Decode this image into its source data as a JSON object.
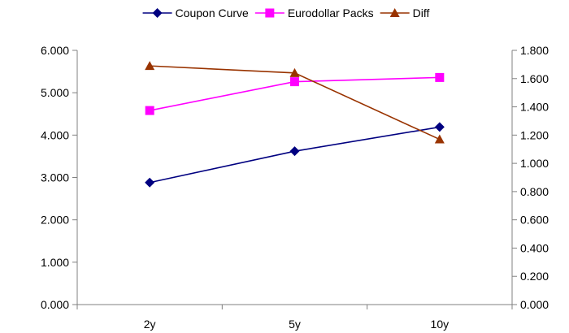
{
  "chart_data": {
    "type": "line",
    "categories": [
      "2y",
      "5y",
      "10y"
    ],
    "series": [
      {
        "name": "Coupon Curve",
        "axis": "left",
        "values": [
          2.88,
          3.62,
          4.19
        ],
        "color": "#000080",
        "marker": "diamond"
      },
      {
        "name": "Eurodollar Packs",
        "axis": "left",
        "values": [
          4.58,
          5.26,
          5.36
        ],
        "color": "#FF00FF",
        "marker": "square"
      },
      {
        "name": "Diff",
        "axis": "right",
        "values": [
          1.69,
          1.64,
          1.17
        ],
        "color": "#993300",
        "marker": "triangle"
      }
    ],
    "y_left": {
      "ylim": [
        0,
        6
      ],
      "ticks": [
        "0.000",
        "1.000",
        "2.000",
        "3.000",
        "4.000",
        "5.000",
        "6.000"
      ]
    },
    "y_right": {
      "ylim": [
        0,
        1.8
      ],
      "ticks": [
        "0.000",
        "0.200",
        "0.400",
        "0.600",
        "0.800",
        "1.000",
        "1.200",
        "1.400",
        "1.600",
        "1.800"
      ]
    },
    "grid": false,
    "legend_position": "top"
  }
}
